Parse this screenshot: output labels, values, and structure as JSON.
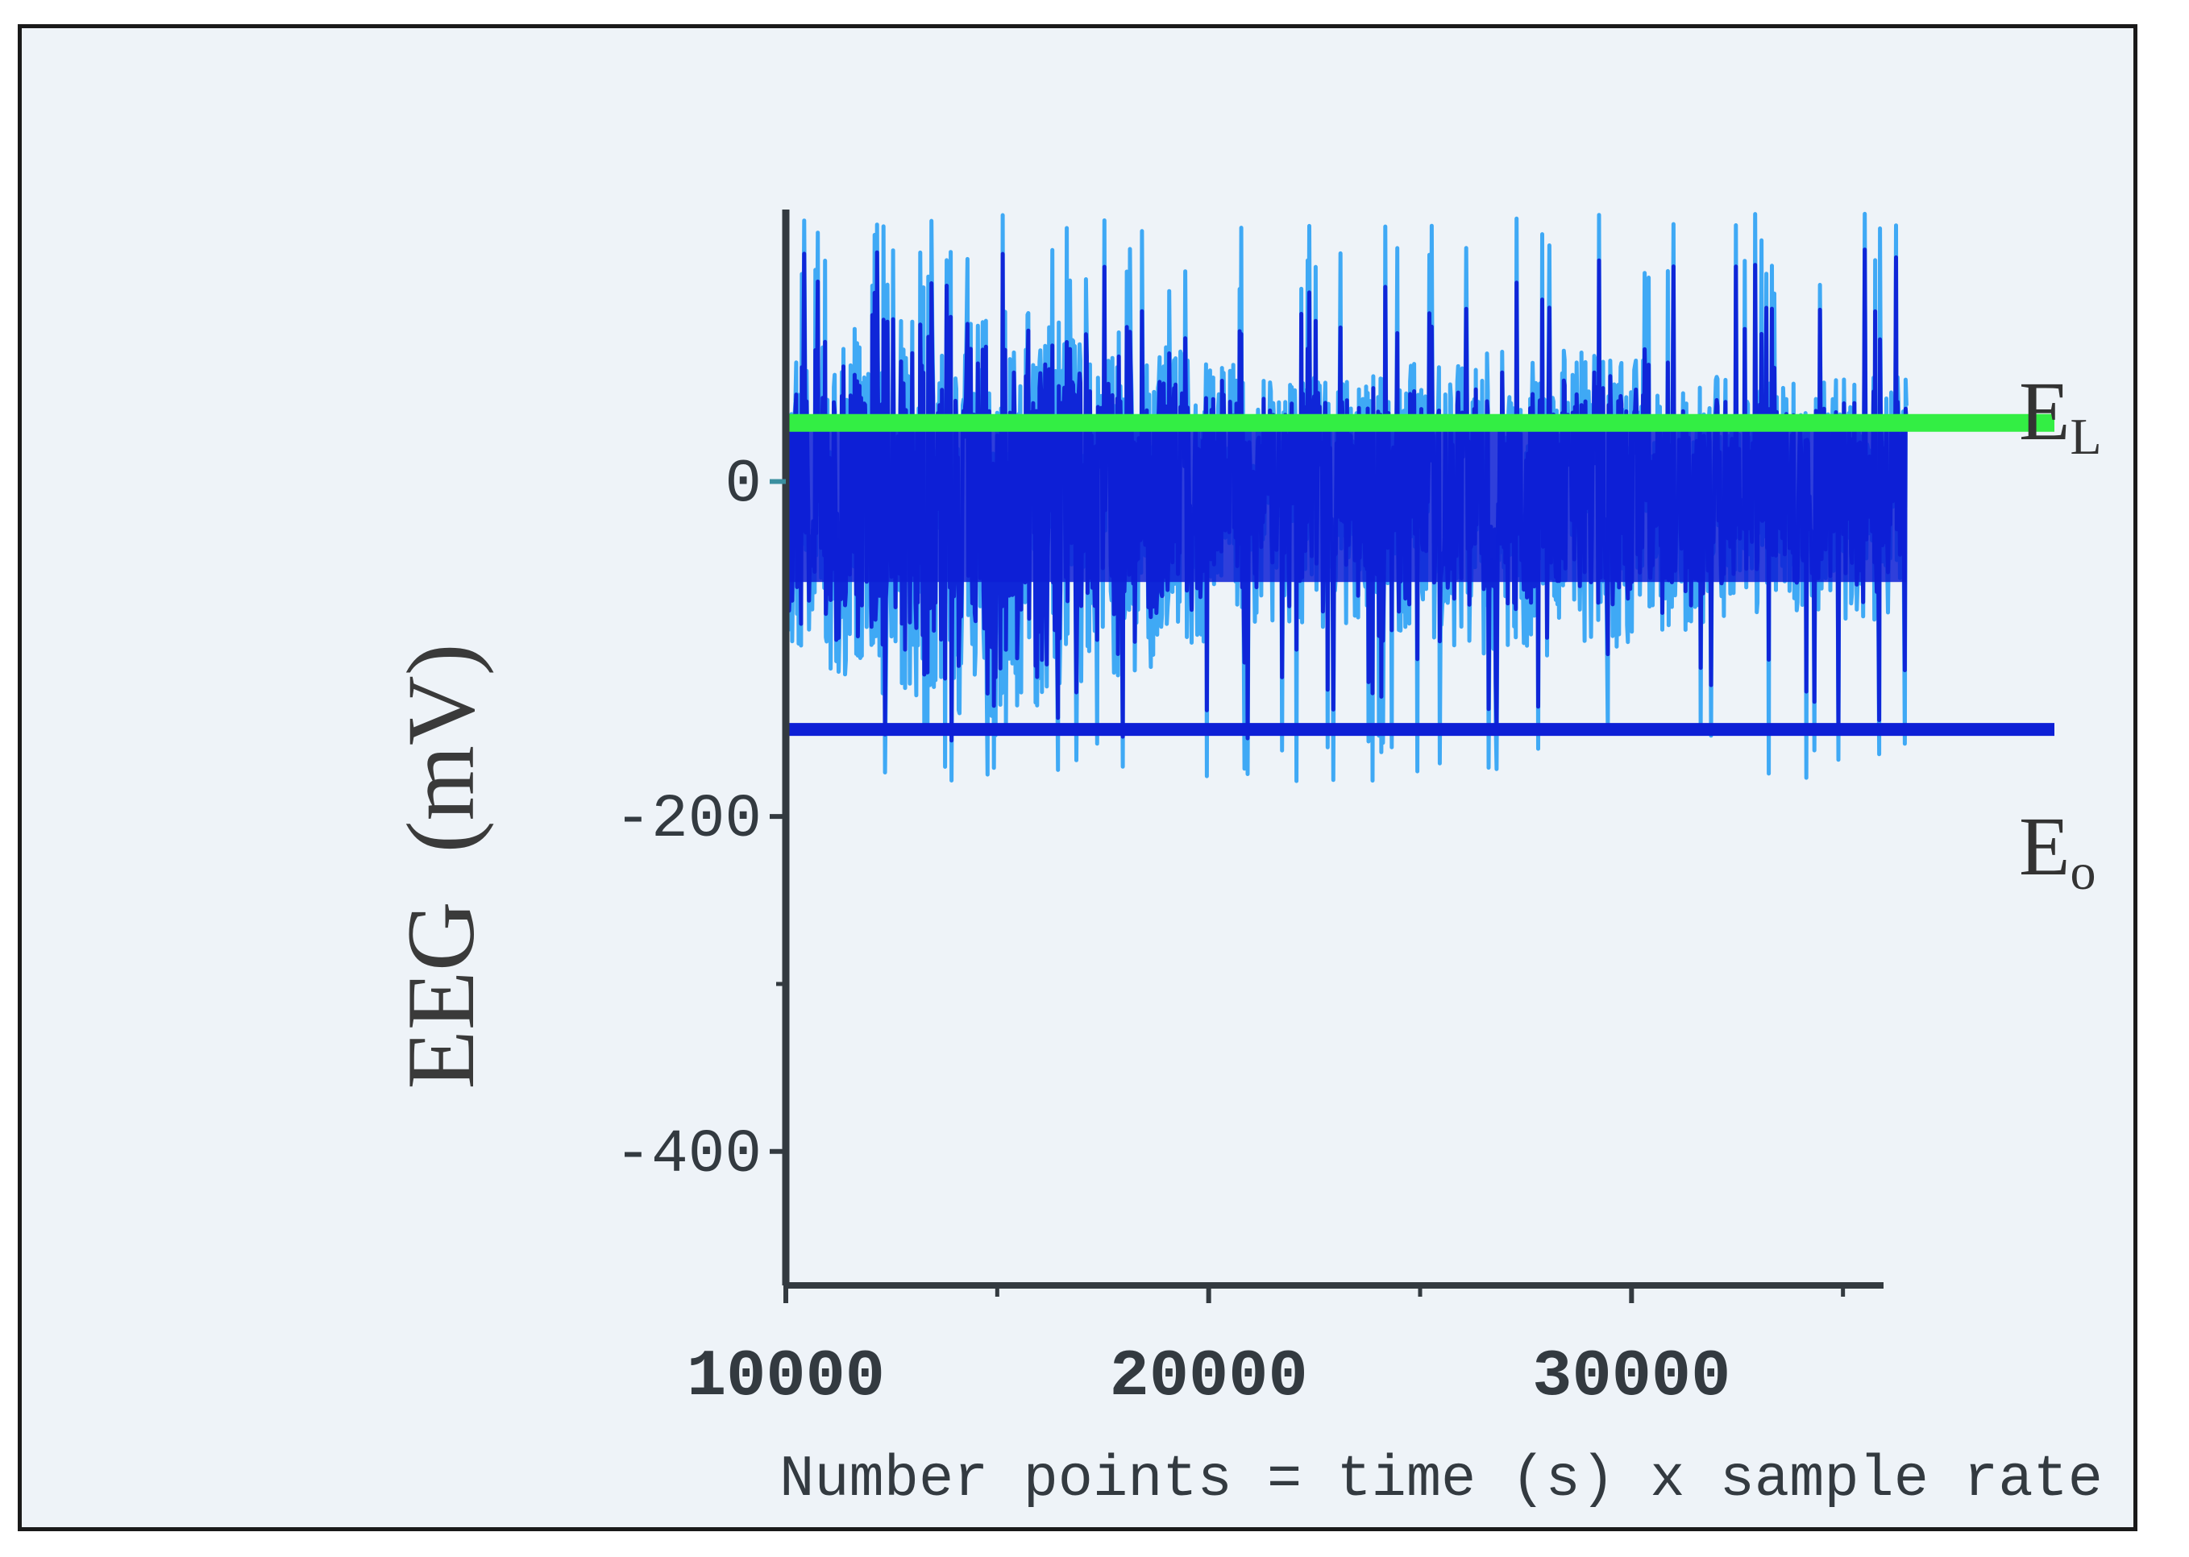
{
  "colors": {
    "background": "#eef3f8",
    "axis": "#333a40",
    "signal_light": "#3fa9f5",
    "signal_dark": "#0d1fd6",
    "level_L": "#33ee44",
    "level_O": "#0d1fd6",
    "zero_tick": "#3a8fa0"
  },
  "chart_data": {
    "type": "line",
    "title": "",
    "xlabel": "Number points = time (s) x sample rate",
    "ylabel": "EEG (mV)",
    "xlim": [
      10000,
      40000
    ],
    "ylim": [
      -480,
      160
    ],
    "x_ticks": [
      10000,
      20000,
      30000
    ],
    "x_tick_labels": [
      "10000",
      "20000",
      "30000"
    ],
    "y_ticks": [
      0,
      -200,
      -400
    ],
    "y_tick_labels": [
      "0",
      "-200",
      "-400"
    ],
    "grid": false,
    "signal": {
      "x_start": 10000,
      "x_end": 36500,
      "y_min": -180,
      "y_max": 160,
      "typical_range": [
        -100,
        70
      ]
    },
    "levels": [
      {
        "label": "E",
        "subscript": "L",
        "y": 35,
        "x_end": 40000
      },
      {
        "label": "E",
        "subscript": "o",
        "y": -148,
        "x_end": 40000
      }
    ]
  }
}
